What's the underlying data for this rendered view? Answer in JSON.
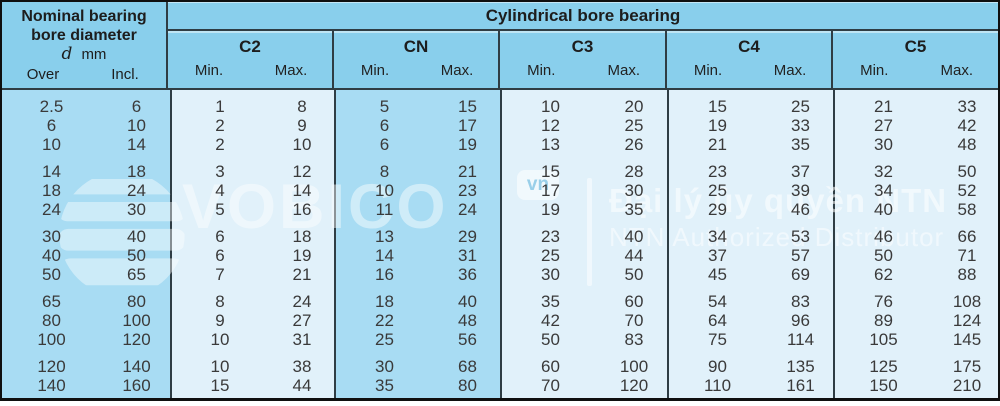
{
  "header": {
    "left_title_line1": "Nominal bearing",
    "left_title_line2": "bore diameter",
    "left_symbol": "d",
    "left_unit": "mm",
    "over_label": "Over",
    "incl_label": "Incl.",
    "span_title": "Cylindrical bore bearing",
    "min_label": "Min.",
    "max_label": "Max.",
    "classes": [
      "C2",
      "CN",
      "C3",
      "C4",
      "C5"
    ]
  },
  "table": {
    "groups": [
      {
        "rows": [
          {
            "over": "2.5",
            "incl": "6",
            "c2": [
              "1",
              "8"
            ],
            "cn": [
              "5",
              "15"
            ],
            "c3": [
              "10",
              "20"
            ],
            "c4": [
              "15",
              "25"
            ],
            "c5": [
              "21",
              "33"
            ]
          },
          {
            "over": "6",
            "incl": "10",
            "c2": [
              "2",
              "9"
            ],
            "cn": [
              "6",
              "17"
            ],
            "c3": [
              "12",
              "25"
            ],
            "c4": [
              "19",
              "33"
            ],
            "c5": [
              "27",
              "42"
            ]
          },
          {
            "over": "10",
            "incl": "14",
            "c2": [
              "2",
              "10"
            ],
            "cn": [
              "6",
              "19"
            ],
            "c3": [
              "13",
              "26"
            ],
            "c4": [
              "21",
              "35"
            ],
            "c5": [
              "30",
              "48"
            ]
          }
        ]
      },
      {
        "rows": [
          {
            "over": "14",
            "incl": "18",
            "c2": [
              "3",
              "12"
            ],
            "cn": [
              "8",
              "21"
            ],
            "c3": [
              "15",
              "28"
            ],
            "c4": [
              "23",
              "37"
            ],
            "c5": [
              "32",
              "50"
            ]
          },
          {
            "over": "18",
            "incl": "24",
            "c2": [
              "4",
              "14"
            ],
            "cn": [
              "10",
              "23"
            ],
            "c3": [
              "17",
              "30"
            ],
            "c4": [
              "25",
              "39"
            ],
            "c5": [
              "34",
              "52"
            ]
          },
          {
            "over": "24",
            "incl": "30",
            "c2": [
              "5",
              "16"
            ],
            "cn": [
              "11",
              "24"
            ],
            "c3": [
              "19",
              "35"
            ],
            "c4": [
              "29",
              "46"
            ],
            "c5": [
              "40",
              "58"
            ]
          }
        ]
      },
      {
        "rows": [
          {
            "over": "30",
            "incl": "40",
            "c2": [
              "6",
              "18"
            ],
            "cn": [
              "13",
              "29"
            ],
            "c3": [
              "23",
              "40"
            ],
            "c4": [
              "34",
              "53"
            ],
            "c5": [
              "46",
              "66"
            ]
          },
          {
            "over": "40",
            "incl": "50",
            "c2": [
              "6",
              "19"
            ],
            "cn": [
              "14",
              "31"
            ],
            "c3": [
              "25",
              "44"
            ],
            "c4": [
              "37",
              "57"
            ],
            "c5": [
              "50",
              "71"
            ]
          },
          {
            "over": "50",
            "incl": "65",
            "c2": [
              "7",
              "21"
            ],
            "cn": [
              "16",
              "36"
            ],
            "c3": [
              "30",
              "50"
            ],
            "c4": [
              "45",
              "69"
            ],
            "c5": [
              "62",
              "88"
            ]
          }
        ]
      },
      {
        "rows": [
          {
            "over": "65",
            "incl": "80",
            "c2": [
              "8",
              "24"
            ],
            "cn": [
              "18",
              "40"
            ],
            "c3": [
              "35",
              "60"
            ],
            "c4": [
              "54",
              "83"
            ],
            "c5": [
              "76",
              "108"
            ]
          },
          {
            "over": "80",
            "incl": "100",
            "c2": [
              "9",
              "27"
            ],
            "cn": [
              "22",
              "48"
            ],
            "c3": [
              "42",
              "70"
            ],
            "c4": [
              "64",
              "96"
            ],
            "c5": [
              "89",
              "124"
            ]
          },
          {
            "over": "100",
            "incl": "120",
            "c2": [
              "10",
              "31"
            ],
            "cn": [
              "25",
              "56"
            ],
            "c3": [
              "50",
              "83"
            ],
            "c4": [
              "75",
              "114"
            ],
            "c5": [
              "105",
              "145"
            ]
          }
        ]
      },
      {
        "rows": [
          {
            "over": "120",
            "incl": "140",
            "c2": [
              "10",
              "38"
            ],
            "cn": [
              "30",
              "68"
            ],
            "c3": [
              "60",
              "100"
            ],
            "c4": [
              "90",
              "135"
            ],
            "c5": [
              "125",
              "175"
            ]
          },
          {
            "over": "140",
            "incl": "160",
            "c2": [
              "15",
              "44"
            ],
            "cn": [
              "35",
              "80"
            ],
            "c3": [
              "70",
              "120"
            ],
            "c4": [
              "110",
              "161"
            ],
            "c5": [
              "150",
              "210"
            ]
          }
        ]
      }
    ]
  },
  "watermark": {
    "globe_icon": "globe-icon",
    "brand": "VOBICO",
    "badge": "vn",
    "line1": "Đại lý ủy quyền NTN",
    "line2": "NTN Authorized Distributor"
  },
  "colors": {
    "header_blue": "#89cfec",
    "body_blue": "#a8dcf3",
    "body_light": "#e1f1fa",
    "line_dark": "#2f3d44",
    "outer_border": "#0f0f0f"
  }
}
